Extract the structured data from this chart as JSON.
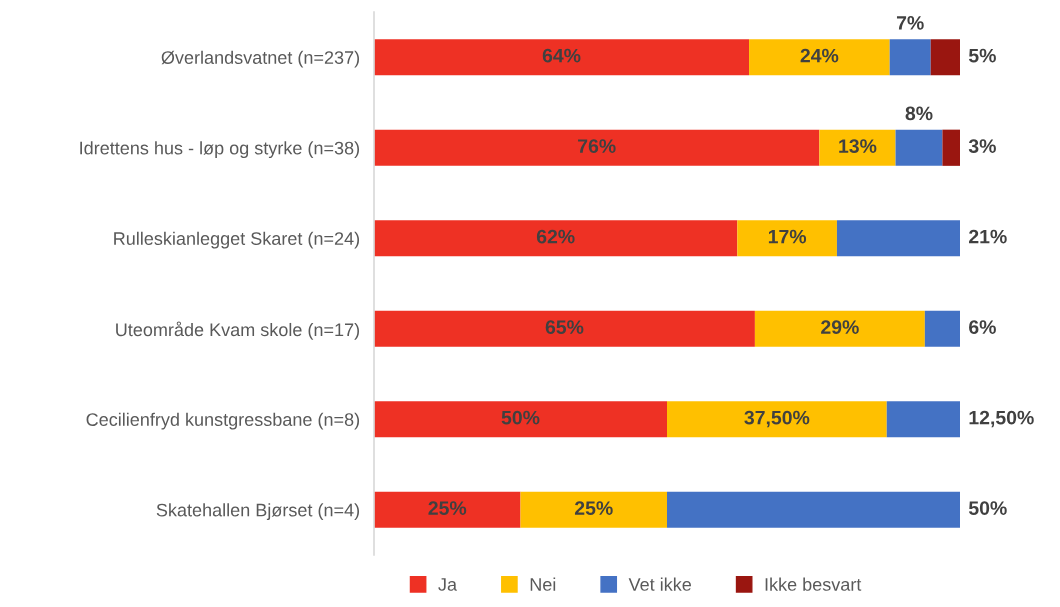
{
  "chart_data": {
    "type": "bar",
    "orientation": "horizontal",
    "stacked": true,
    "categories": [
      "Øverlandsvatnet (n=237)",
      "Idrettens hus - løp og styrke (n=38)",
      "Rulleskianlegget Skaret (n=24)",
      "Uteområde Kvam skole (n=17)",
      "Cecilienfryd kunstgressbane (n=8)",
      "Skatehallen Bjørset (n=4)"
    ],
    "series": [
      {
        "name": "Ja",
        "color": "#ee3124",
        "values": [
          64,
          76,
          62,
          65,
          50,
          25
        ],
        "value_labels": [
          "64%",
          "76%",
          "62%",
          "65%",
          "50%",
          "25%"
        ]
      },
      {
        "name": "Nei",
        "color": "#ffc000",
        "values": [
          24,
          13,
          17,
          29,
          37.5,
          25
        ],
        "value_labels": [
          "24%",
          "13%",
          "17%",
          "29%",
          "37,50%",
          "25%"
        ]
      },
      {
        "name": "Vet ikke",
        "color": "#4472c4",
        "values": [
          7,
          8,
          21,
          6,
          12.5,
          50
        ],
        "value_labels": [
          "7%",
          "8%",
          "21%",
          "6%",
          "12,50%",
          "50%"
        ]
      },
      {
        "name": "Ikke besvart",
        "color": "#9a1610",
        "values": [
          5,
          3,
          null,
          null,
          null,
          null
        ],
        "value_labels": [
          "5%",
          "3%",
          null,
          null,
          null,
          null
        ]
      }
    ],
    "xlim": [
      0,
      100
    ],
    "tick_labels": "y",
    "legend": "bottom"
  }
}
